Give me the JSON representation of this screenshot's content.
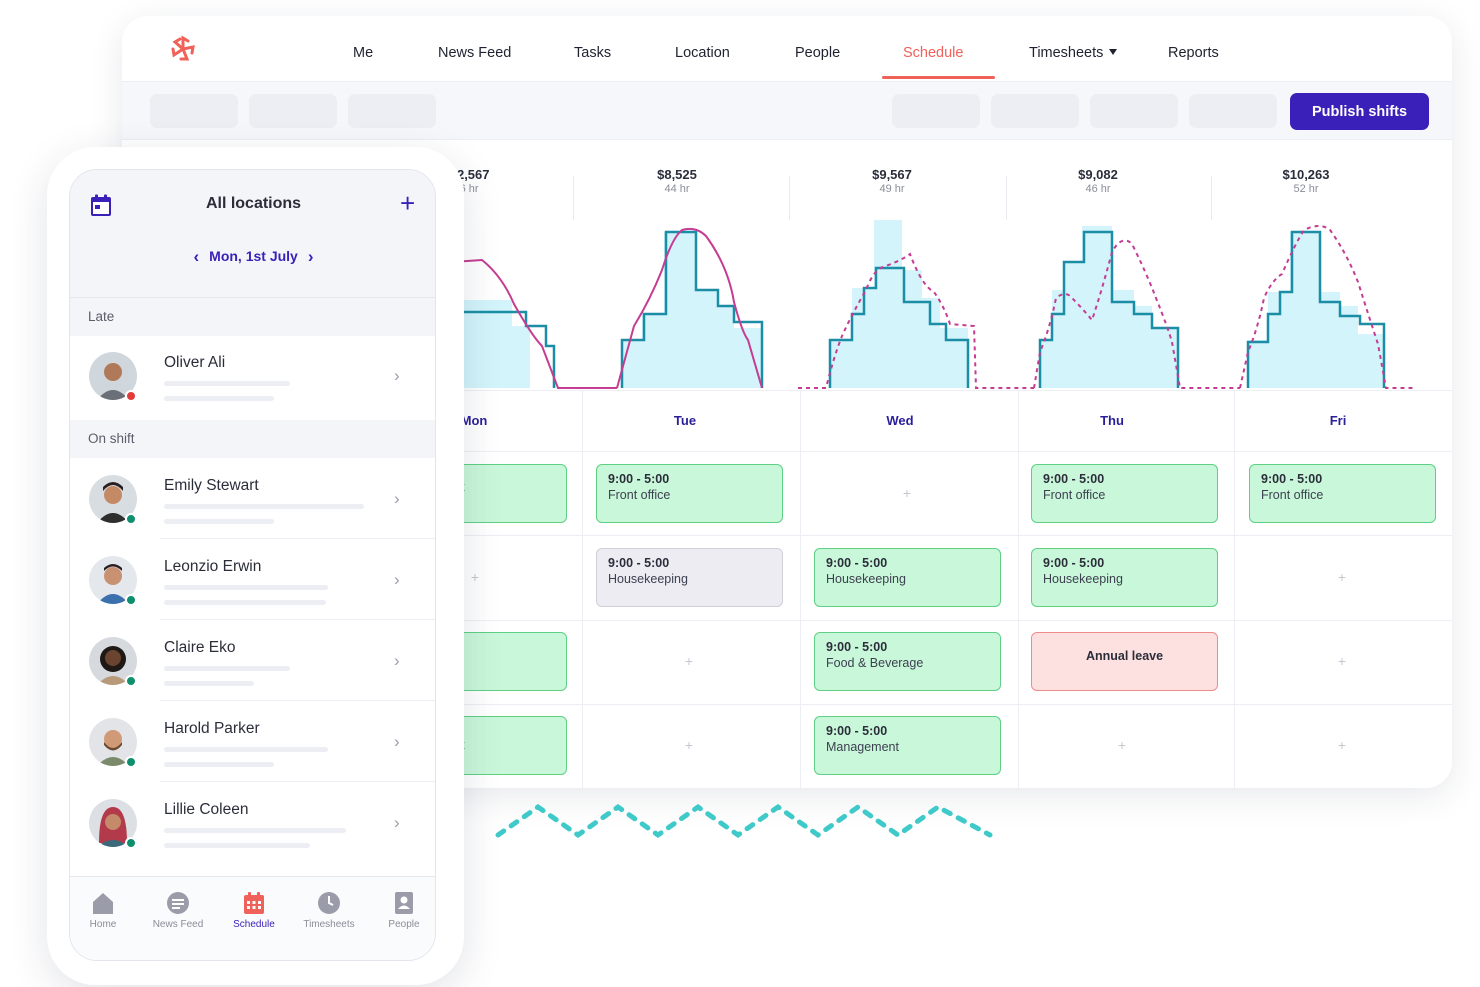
{
  "nav": {
    "items": [
      "Me",
      "News Feed",
      "Tasks",
      "Location",
      "People",
      "Schedule",
      "Timesheets",
      "Reports"
    ],
    "active": "Schedule"
  },
  "toolbar": {
    "publish_label": "Publish shifts"
  },
  "days": [
    {
      "label": "Mon",
      "amount": "$12,567",
      "hours": "56 hr"
    },
    {
      "label": "Tue",
      "amount": "$8,525",
      "hours": "44 hr"
    },
    {
      "label": "Wed",
      "amount": "$9,567",
      "hours": "49 hr"
    },
    {
      "label": "Thu",
      "amount": "$9,082",
      "hours": "46 hr"
    },
    {
      "label": "Fri",
      "amount": "$10,263",
      "hours": "52 hr"
    }
  ],
  "shifts": {
    "tue_front": {
      "time": "9:00 - 5:00",
      "role": "Front office"
    },
    "thu_front": {
      "time": "9:00 - 5:00",
      "role": "Front office"
    },
    "fri_front": {
      "time": "9:00 - 5:00",
      "role": "Front office"
    },
    "tue_house": {
      "time": "9:00 - 5:00",
      "role": "Housekeeping"
    },
    "wed_house": {
      "time": "9:00 - 5:00",
      "role": "Housekeeping"
    },
    "thu_house": {
      "time": "9:00 - 5:00",
      "role": "Housekeeping"
    },
    "wed_food": {
      "time": "9:00 - 5:00",
      "role": "Food & Beverage"
    },
    "thu_leave": {
      "label": "Annual leave"
    },
    "wed_mgmt": {
      "time": "9:00 - 5:00",
      "role": "Management"
    },
    "mon_front_partial": "t",
    "mon_mgmt_partial": "t"
  },
  "empty_cell": "+",
  "colors": {
    "brand": "#3a1fb8",
    "accent": "#f0615a",
    "shift_green": "#c9f7da",
    "shift_grey": "#ececf2",
    "shift_leave": "#fde0e0",
    "chart_fill": "#d3f4fb",
    "chart_line": "#1b8ea6",
    "demand_line": "#c43d93",
    "squiggle": "#3fc9c9"
  },
  "mobile": {
    "title": "All locations",
    "date": "Mon, 1st July",
    "sections": {
      "late": "Late",
      "on_shift": "On shift"
    },
    "people": [
      {
        "name": "Oliver Ali",
        "status": "late"
      },
      {
        "name": "Emily Stewart",
        "status": "on"
      },
      {
        "name": "Leonzio Erwin",
        "status": "on"
      },
      {
        "name": "Claire Eko",
        "status": "on"
      },
      {
        "name": "Harold Parker",
        "status": "on"
      },
      {
        "name": "Lillie Coleen",
        "status": "on"
      }
    ],
    "tabs": [
      {
        "label": "Home",
        "icon": "home-icon"
      },
      {
        "label": "News Feed",
        "icon": "chat-icon"
      },
      {
        "label": "Schedule",
        "icon": "calendar-icon",
        "active": true
      },
      {
        "label": "Timesheets",
        "icon": "clock-icon"
      },
      {
        "label": "People",
        "icon": "contact-book-icon"
      }
    ]
  }
}
